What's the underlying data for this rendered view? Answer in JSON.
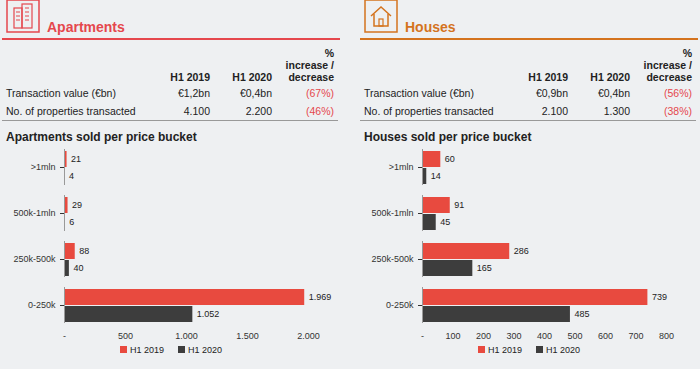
{
  "panels": [
    {
      "heading": "Apartments",
      "table": {
        "columns": [
          "H1 2019",
          "H1 2020",
          "% increase / decrease"
        ],
        "rows": [
          {
            "label": "Transaction value (€bn)",
            "cells": [
              "€1,2bn",
              "€0,4bn",
              "(67%)"
            ]
          },
          {
            "label": "No. of properties transacted",
            "cells": [
              "4.100",
              "2.200",
              "(46%)"
            ]
          }
        ]
      }
    },
    {
      "heading": "Houses",
      "table": {
        "columns": [
          "H1 2019",
          "H1 2020",
          "% increase / decrease"
        ],
        "rows": [
          {
            "label": "Transaction value (€bn)",
            "cells": [
              "€0,9bn",
              "€0,4bn",
              "(56%)"
            ]
          },
          {
            "label": "No. of properties transacted",
            "cells": [
              "2.100",
              "1.300",
              "(38%)"
            ]
          }
        ]
      }
    }
  ],
  "chart_data": [
    {
      "type": "bar",
      "orientation": "horizontal",
      "title": "Apartments sold per price bucket",
      "categories": [
        ">1mln",
        "500k-1mln",
        "250k-500k",
        "0-250k"
      ],
      "series": [
        {
          "name": "H1 2019",
          "color": "#e84a3f",
          "values": [
            21,
            29,
            88,
            1969
          ],
          "value_labels": [
            "21",
            "29",
            "88",
            "1.969"
          ]
        },
        {
          "name": "H1 2020",
          "color": "#3d3d3d",
          "values": [
            4,
            6,
            40,
            1052
          ],
          "value_labels": [
            "4",
            "6",
            "40",
            "1.052"
          ]
        }
      ],
      "xlim": [
        0,
        2000
      ],
      "xticks": [
        {
          "value": 0,
          "label": "-"
        },
        500,
        {
          "value": 1000,
          "label": "1.000"
        },
        {
          "value": 1500,
          "label": "1.500"
        },
        {
          "value": 2000,
          "label": "2.000"
        }
      ],
      "data_labels": true,
      "legend": "bottom",
      "grid": false
    },
    {
      "type": "bar",
      "orientation": "horizontal",
      "title": "Houses sold per price bucket",
      "categories": [
        ">1mln",
        "500k-1mln",
        "250k-500k",
        "0-250k"
      ],
      "series": [
        {
          "name": "H1 2019",
          "color": "#e84a3f",
          "values": [
            60,
            91,
            286,
            739
          ]
        },
        {
          "name": "H1 2020",
          "color": "#3d3d3d",
          "values": [
            14,
            45,
            165,
            485
          ]
        }
      ],
      "xlim": [
        0,
        800
      ],
      "xticks": [
        {
          "value": 0,
          "label": "-"
        },
        100,
        200,
        300,
        400,
        500,
        600,
        700,
        800
      ],
      "data_labels": true,
      "legend": "bottom",
      "grid": false
    }
  ]
}
